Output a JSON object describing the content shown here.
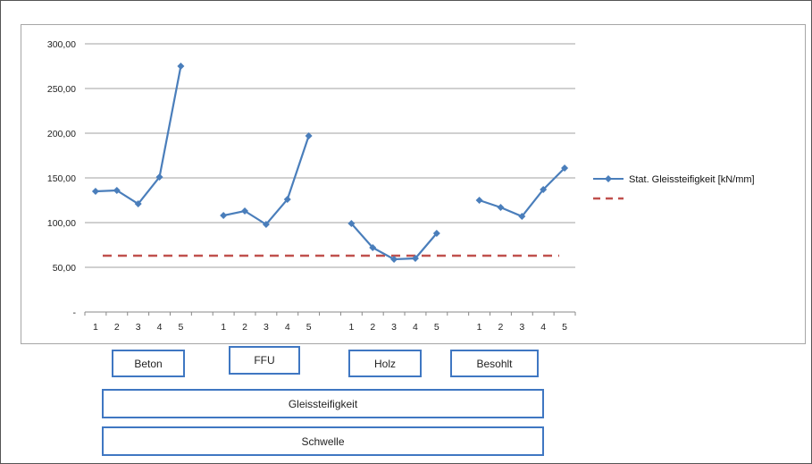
{
  "chart_data": {
    "type": "line",
    "y_tick_labels": [
      "300,00",
      "250,00",
      "200,00",
      "150,00",
      "100,00",
      "50,00",
      "-"
    ],
    "ylim": [
      0,
      300
    ],
    "groups": [
      {
        "name": "Beton",
        "x": [
          "1",
          "2",
          "3",
          "4",
          "5"
        ],
        "values": [
          135,
          136,
          121,
          151,
          275
        ]
      },
      {
        "name": "FFU",
        "x": [
          "1",
          "2",
          "3",
          "4",
          "5"
        ],
        "values": [
          108,
          113,
          98,
          126,
          197
        ]
      },
      {
        "name": "Holz",
        "x": [
          "1",
          "2",
          "3",
          "4",
          "5"
        ],
        "values": [
          99,
          72,
          59,
          60,
          88
        ]
      },
      {
        "name": "Besohlt",
        "x": [
          "1",
          "2",
          "3",
          "4",
          "5"
        ],
        "values": [
          125,
          117,
          107,
          137,
          161
        ]
      }
    ],
    "series": [
      {
        "name": "Stat. Gleissteifigkeit [kN/mm]",
        "color": "#4a7ebb"
      }
    ],
    "reference_line": {
      "value": 63,
      "color": "#c0504d"
    },
    "category_levels": {
      "level1": "Gleissteifigkeit",
      "level2": "Schwelle"
    },
    "grid": true,
    "legend": "right"
  }
}
